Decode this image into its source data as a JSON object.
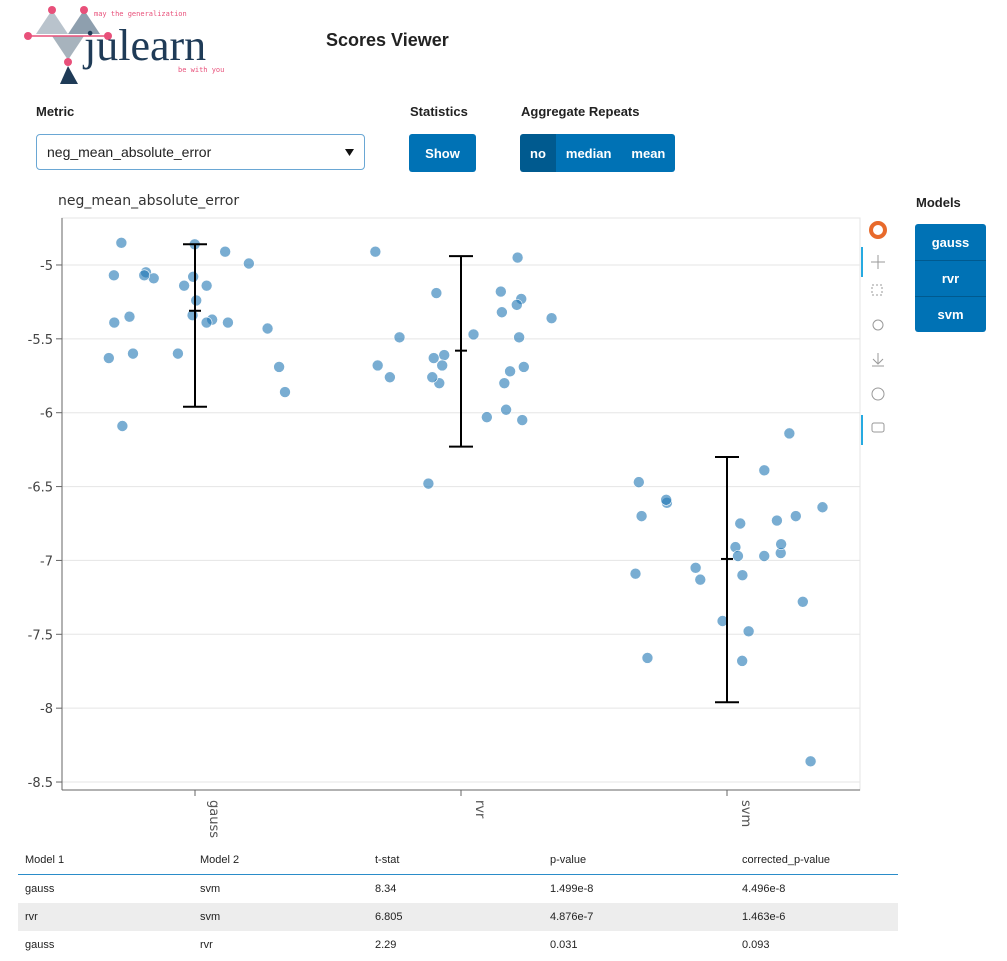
{
  "header": {
    "logo": {
      "name": "julearn",
      "tagline_top": "may the generalization",
      "tagline_bottom": "be with you"
    },
    "title": "Scores Viewer"
  },
  "controls": {
    "metric": {
      "label": "Metric",
      "selected": "neg_mean_absolute_error"
    },
    "statistics": {
      "label": "Statistics",
      "button": "Show"
    },
    "aggregate": {
      "label": "Aggregate Repeats",
      "options": [
        "no",
        "median",
        "mean"
      ],
      "selected": "no"
    }
  },
  "chart_data": {
    "type": "scatter",
    "title": "neg_mean_absolute_error",
    "categories": [
      "gauss",
      "rvr",
      "svm"
    ],
    "legend_title": "Models",
    "series": [
      {
        "name": "gauss",
        "color": "#1f77b4",
        "values": [
          -5.08,
          -5.14,
          -4.85,
          -5.05,
          -5.14,
          -5.24,
          -5.39,
          -5.43,
          -5.37,
          -5.6,
          -5.09,
          -4.99,
          -4.91,
          -5.07,
          -4.86,
          -5.07,
          -5.39,
          -5.35,
          -5.39,
          -5.34,
          -5.6,
          -5.63,
          -5.69,
          -5.86,
          -6.09
        ]
      },
      {
        "name": "rvr",
        "color": "#1f77b4",
        "values": [
          -5.32,
          -5.68,
          -6.48,
          -5.61,
          -5.68,
          -4.95,
          -5.8,
          -6.05,
          -5.23,
          -4.91,
          -5.98,
          -5.49,
          -5.69,
          -5.47,
          -5.49,
          -5.76,
          -5.8,
          -5.63,
          -5.19,
          -6.03,
          -5.72,
          -5.36,
          -5.18,
          -5.27,
          -5.76
        ]
      },
      {
        "name": "svm",
        "color": "#1f77b4",
        "values": [
          -8.36,
          -6.75,
          -6.91,
          -7.1,
          -7.13,
          -7.66,
          -6.97,
          -6.73,
          -6.47,
          -6.39,
          -6.61,
          -6.14,
          -6.64,
          -6.7,
          -6.7,
          -7.09,
          -6.95,
          -6.97,
          -6.59,
          -6.89,
          -7.05,
          -7.28,
          -7.41,
          -7.48,
          -7.68
        ]
      }
    ],
    "error_bars": [
      {
        "center": -5.31,
        "low": -5.96,
        "high": -4.86
      },
      {
        "center": -5.58,
        "low": -6.23,
        "high": -4.94
      },
      {
        "center": -6.99,
        "low": -7.96,
        "high": -6.3
      }
    ],
    "error_bar_color": "#000000",
    "ylim": [
      -8.554,
      -4.682
    ],
    "yticks": [
      -5,
      -5.5,
      -6,
      -6.5,
      -7,
      -7.5,
      -8,
      -8.5
    ],
    "grid": true
  },
  "table": {
    "columns": [
      "Model 1",
      "Model 2",
      "t-stat",
      "p-value",
      "corrected_p-value"
    ],
    "rows": [
      [
        "gauss",
        "svm",
        "8.34",
        "1.499e-8",
        "4.496e-8"
      ],
      [
        "rvr",
        "svm",
        "6.805",
        "4.876e-7",
        "1.463e-6"
      ],
      [
        "gauss",
        "rvr",
        "2.29",
        "0.031",
        "0.093"
      ]
    ]
  }
}
